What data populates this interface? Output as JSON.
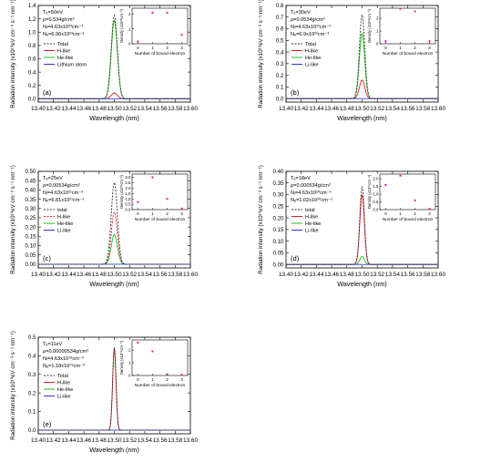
{
  "chart_data": [
    {
      "type": "line",
      "panel_label": "(a)",
      "xlabel": "Wavelength (nm)",
      "ylabel": "Radiation intensity (x10¹⁰eV cm⁻³ s⁻¹ nm⁻¹)",
      "xlim": [
        13.4,
        13.6
      ],
      "ylim": [
        -0.05,
        1.4
      ],
      "x_ticks": [
        13.4,
        13.42,
        13.44,
        13.46,
        13.48,
        13.5,
        13.52,
        13.54,
        13.56,
        13.58,
        13.6
      ],
      "y_ticks": [
        0.0,
        0.2,
        0.4,
        0.6,
        0.8,
        1.0,
        1.2,
        1.4
      ],
      "y_tick_labels": [
        "0.0",
        "0.2",
        "0.4",
        "0.6",
        "0.8",
        "1.0",
        "1.2",
        "1.4"
      ],
      "line_center": 13.5,
      "line_width_sigma": 0.004,
      "params": [
        "Tₑ=50eV",
        "ρ=0.534g/cm³",
        "Nᵢ=4.63x10²³cm⁻³",
        "Nₑ=6.96x10²³cm⁻³"
      ],
      "series": [
        {
          "name": "Total",
          "color": "#333333",
          "dash": "2,1.5",
          "peak": 1.25
        },
        {
          "name": "H-like",
          "color": "#e02020",
          "dash": "",
          "peak": 0.085
        },
        {
          "name": "He-like",
          "color": "#22bb22",
          "dash": "",
          "peak": 1.17
        },
        {
          "name": "Lithium atom",
          "color": "#2a3bd0",
          "dash": "",
          "peak": 0.0
        }
      ],
      "inset": {
        "xlabel": "Number of bound electron",
        "ylabel": "Density (x10²³cm⁻³)",
        "x_ticks": [
          0,
          1,
          2,
          3
        ],
        "y_ticks": [
          0,
          1,
          2
        ],
        "ylim": [
          0,
          2.4
        ],
        "points": [
          {
            "x": 0,
            "y": 0.15
          },
          {
            "x": 1,
            "y": 2.1
          },
          {
            "x": 2,
            "y": 2.1
          },
          {
            "x": 3,
            "y": 0.6
          }
        ]
      }
    },
    {
      "type": "line",
      "panel_label": "(b)",
      "xlabel": "Wavelength (nm)",
      "ylabel": "Radiation intensity (x10¹⁰eV cm⁻³ s⁻¹ nm⁻¹)",
      "xlim": [
        13.4,
        13.6
      ],
      "ylim": [
        -0.03,
        0.8
      ],
      "x_ticks": [
        13.4,
        13.42,
        13.44,
        13.46,
        13.48,
        13.5,
        13.52,
        13.54,
        13.56,
        13.58,
        13.6
      ],
      "y_ticks": [
        0.0,
        0.1,
        0.2,
        0.3,
        0.4,
        0.5,
        0.6,
        0.7,
        0.8
      ],
      "y_tick_labels": [
        "0.0",
        "0.1",
        "0.2",
        "0.3",
        "0.4",
        "0.5",
        "0.6",
        "0.7",
        "0.8"
      ],
      "line_center": 13.5,
      "line_width_sigma": 0.0035,
      "params": [
        "Tₑ=30eV",
        "ρ=0.0534g/cm³",
        "Nᵢ=4.63x10²²cm⁻³",
        "Nₑ=6.9x10²²cm⁻³"
      ],
      "series": [
        {
          "name": "Total",
          "color": "#333333",
          "dash": "2,1.5",
          "peak": 0.72
        },
        {
          "name": "H-like",
          "color": "#e02020",
          "dash": "",
          "peak": 0.16
        },
        {
          "name": "He-like",
          "color": "#22bb22",
          "dash": "",
          "peak": 0.56
        },
        {
          "name": "Li-like",
          "color": "#2a3bd0",
          "dash": "",
          "peak": 0.0
        }
      ],
      "inset": {
        "xlabel": "Number of bound electron",
        "ylabel": "Density (x10²²cm⁻³)",
        "x_ticks": [
          0,
          1,
          2,
          3
        ],
        "y_ticks": [
          0,
          1,
          2
        ],
        "ylim": [
          0,
          2.8
        ],
        "points": [
          {
            "x": 0,
            "y": 0.2
          },
          {
            "x": 1,
            "y": 2.75
          },
          {
            "x": 2,
            "y": 2.55
          },
          {
            "x": 3,
            "y": 0.2
          }
        ]
      }
    },
    {
      "type": "line",
      "panel_label": "(c)",
      "xlabel": "Wavelength (nm)",
      "ylabel": "Radiation intensity (x10¹⁰eV cm⁻³ s⁻¹ nm⁻¹)",
      "xlim": [
        13.4,
        13.6
      ],
      "ylim": [
        -0.02,
        0.5
      ],
      "x_ticks": [
        13.4,
        13.42,
        13.44,
        13.46,
        13.48,
        13.5,
        13.52,
        13.54,
        13.56,
        13.58,
        13.6
      ],
      "y_ticks": [
        0.0,
        0.05,
        0.1,
        0.15,
        0.2,
        0.25,
        0.3,
        0.35,
        0.4,
        0.45,
        0.5
      ],
      "y_tick_labels": [
        "0.00",
        "0.05",
        "0.10",
        "0.15",
        "0.20",
        "0.25",
        "0.30",
        "0.35",
        "0.40",
        "0.45",
        "0.50"
      ],
      "line_center": 13.5,
      "line_width_sigma": 0.004,
      "params": [
        "Tₑ=25eV",
        "ρ=0.00534g/cm³",
        "Nᵢ=4.63x10²¹cm⁻³",
        "Nₑ=6.81x10²¹cm⁻³"
      ],
      "series": [
        {
          "name": "total",
          "color": "#333333",
          "dash": "2,1.5",
          "peak": 0.44
        },
        {
          "name": "H-like",
          "color": "#e02020",
          "dash": "2,1.5",
          "peak": 0.28
        },
        {
          "name": "He-like",
          "color": "#22bb22",
          "dash": "",
          "peak": 0.16
        },
        {
          "name": "Li-like",
          "color": "#2a3bd0",
          "dash": "",
          "peak": 0.0
        }
      ],
      "inset": {
        "xlabel": "Number of bound electron",
        "ylabel": "Density (x10²¹cm⁻³)",
        "x_ticks": [
          0,
          1,
          2,
          3
        ],
        "y_ticks": [
          0.0,
          0.5,
          1.0,
          1.5,
          2.0,
          2.5,
          3.0
        ],
        "y_tick_labels": [
          "0.0",
          "0.5",
          "1.0",
          "1.5",
          "2.0",
          "2.5",
          "3.0"
        ],
        "ylim": [
          0,
          3.3
        ],
        "points": [
          {
            "x": 0,
            "y": 0.7
          },
          {
            "x": 1,
            "y": 3.0
          },
          {
            "x": 2,
            "y": 1.0
          },
          {
            "x": 3,
            "y": 0.1
          }
        ]
      }
    },
    {
      "type": "line",
      "panel_label": "(d)",
      "xlabel": "Wavelength (nm)",
      "ylabel": "Radiation intensity (x10¹⁰eV cm⁻³ s⁻¹ nm⁻¹)",
      "xlim": [
        13.4,
        13.6
      ],
      "ylim": [
        -0.015,
        0.4
      ],
      "x_ticks": [
        13.4,
        13.42,
        13.44,
        13.46,
        13.48,
        13.5,
        13.52,
        13.54,
        13.56,
        13.58,
        13.6
      ],
      "y_ticks": [
        0.0,
        0.05,
        0.1,
        0.15,
        0.2,
        0.25,
        0.3,
        0.35,
        0.4
      ],
      "y_tick_labels": [
        "0.00",
        "0.05",
        "0.10",
        "0.15",
        "0.20",
        "0.25",
        "0.30",
        "0.35",
        "0.40"
      ],
      "line_center": 13.5,
      "line_width_sigma": 0.003,
      "params": [
        "Tₑ=18eV",
        "ρ=0.000534g/cm³",
        "Nᵢ=4.63x10²⁰cm⁻³",
        "Nₑ=1.02x10²⁰cm⁻³"
      ],
      "series": [
        {
          "name": "total",
          "color": "#333333",
          "dash": "2,1.5",
          "peak": 0.335
        },
        {
          "name": "H-like",
          "color": "#e02020",
          "dash": "",
          "peak": 0.3
        },
        {
          "name": "He-like",
          "color": "#22bb22",
          "dash": "",
          "peak": 0.035
        },
        {
          "name": "Li-like",
          "color": "#2a3bd0",
          "dash": "",
          "peak": 0.0
        }
      ],
      "inset": {
        "xlabel": "Number of bound electron",
        "ylabel": "Density (x10²⁰cm⁻³)",
        "x_ticks": [
          0,
          1,
          2,
          3
        ],
        "y_ticks": [
          0.0,
          0.5,
          1.0,
          1.5,
          2.0
        ],
        "y_tick_labels": [
          "0.0",
          "0.5",
          "1.0",
          "1.5",
          "2.0"
        ],
        "ylim": [
          0,
          2.3
        ],
        "points": [
          {
            "x": 0,
            "y": 1.6
          },
          {
            "x": 1,
            "y": 2.2
          },
          {
            "x": 2,
            "y": 0.6
          },
          {
            "x": 3,
            "y": 0.05
          }
        ]
      }
    },
    {
      "type": "line",
      "panel_label": "(e)",
      "xlabel": "Wavelength (nm)",
      "ylabel": "Radiation intensity (x10¹⁰eV cm⁻³ s⁻¹ nm⁻¹)",
      "xlim": [
        13.4,
        13.6
      ],
      "ylim": [
        -0.02,
        0.5
      ],
      "x_ticks": [
        13.4,
        13.42,
        13.44,
        13.46,
        13.48,
        13.5,
        13.52,
        13.54,
        13.56,
        13.58,
        13.6
      ],
      "y_ticks": [
        0.0,
        0.1,
        0.2,
        0.3,
        0.4,
        0.5
      ],
      "y_tick_labels": [
        "0.0",
        "0.1",
        "0.2",
        "0.3",
        "0.4",
        "0.5"
      ],
      "line_center": 13.5,
      "line_width_sigma": 0.0022,
      "params": [
        "Tₑ=11eV",
        "ρ=0.00000534g/cm³",
        "Nᵢ=4.63x10¹⁹cm⁻³",
        "Nₑ=1.18x10¹⁹cm⁻³"
      ],
      "series": [
        {
          "name": "Total",
          "color": "#333333",
          "dash": "2,1.5",
          "peak": 0.445
        },
        {
          "name": "H-like",
          "color": "#e02020",
          "dash": "",
          "peak": 0.44
        },
        {
          "name": "He-like",
          "color": "#22bb22",
          "dash": "",
          "peak": 0.0
        },
        {
          "name": "Li-like",
          "color": "#2a3bd0",
          "dash": "",
          "peak": 0.0
        }
      ],
      "inset": {
        "xlabel": "Number of bound electron",
        "ylabel": "Density (x10¹⁹cm⁻³)",
        "x_ticks": [
          0,
          1,
          2,
          3
        ],
        "y_ticks": [
          0,
          1,
          2
        ],
        "ylim": [
          0,
          2.8
        ],
        "points": [
          {
            "x": 0,
            "y": 2.6
          },
          {
            "x": 1,
            "y": 1.9
          },
          {
            "x": 2,
            "y": 0.1
          },
          {
            "x": 3,
            "y": 0.05
          }
        ]
      }
    }
  ]
}
